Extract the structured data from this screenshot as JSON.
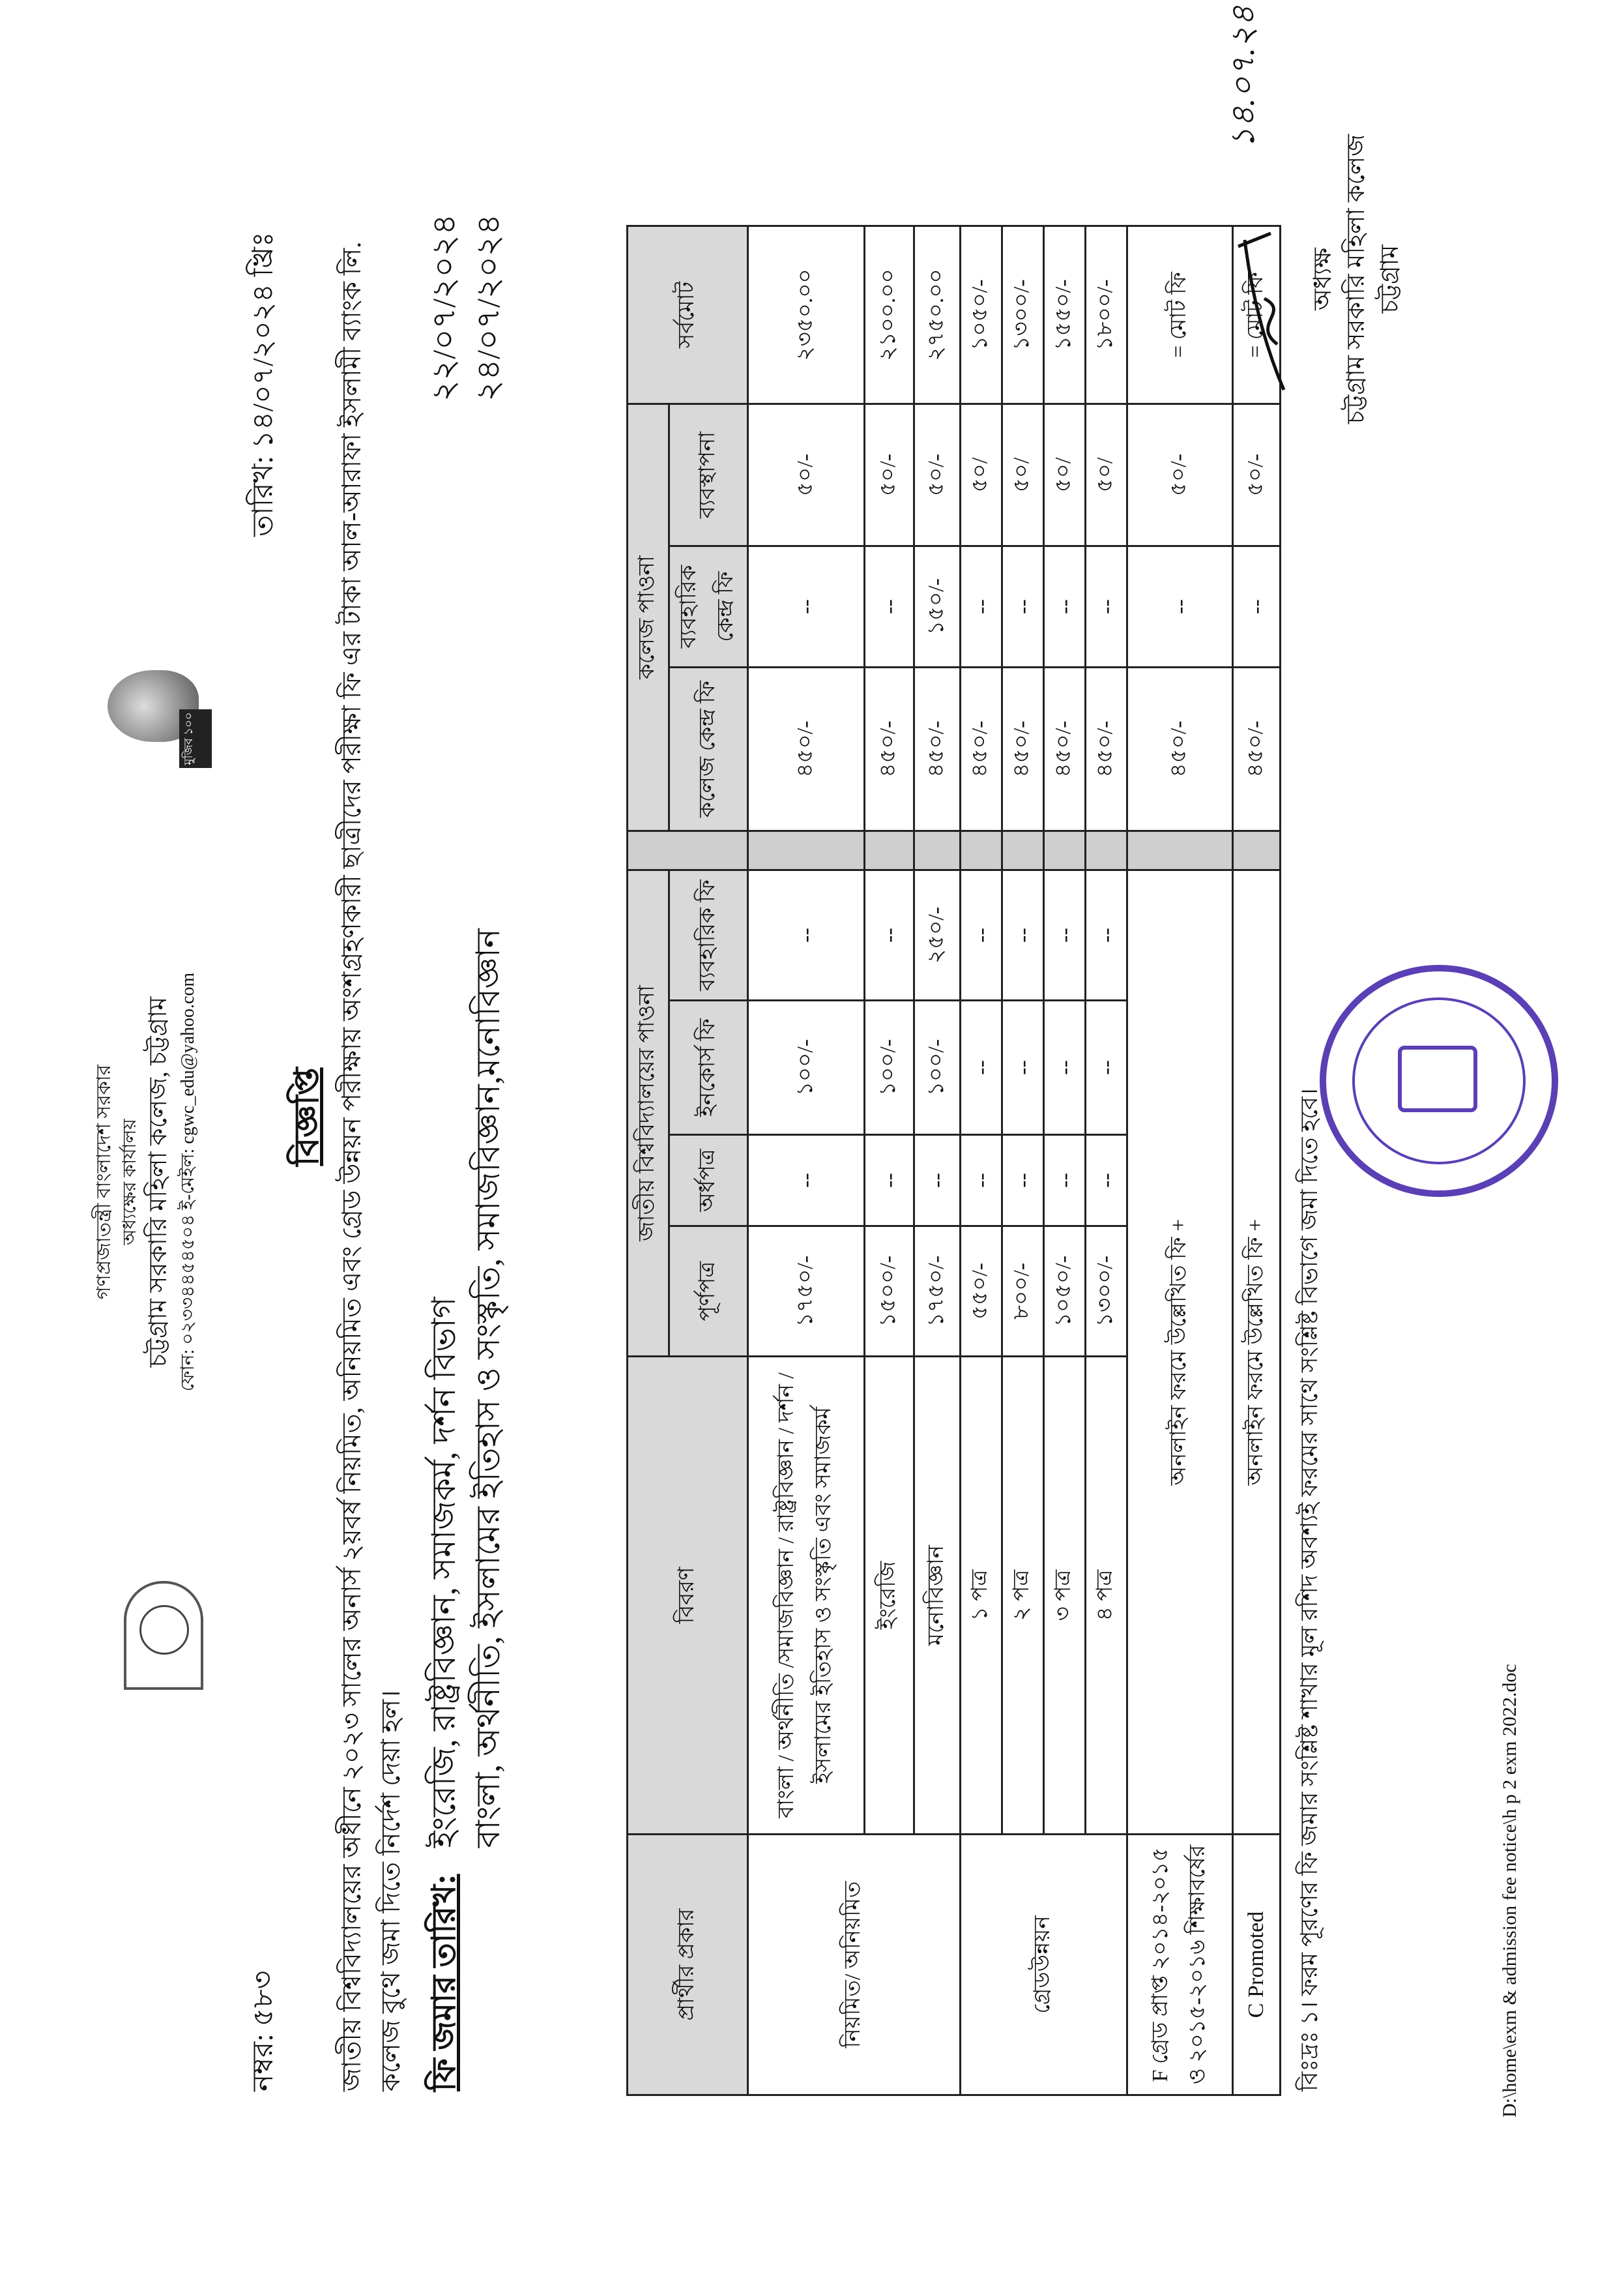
{
  "header": {
    "govt": "গণপ্রজাতন্ত্রী বাংলাদেশ সরকার",
    "office": "অধ্যক্ষের কার্যালয়",
    "college": "চট্টগ্রাম সরকারি মহিলা কলেজ, চট্টগ্রাম",
    "contact": "ফোন: ০২৩৩৪৪৫৪৫০৪ ই-মেইল: cgwc_edu@yahoo.com",
    "mujib_logo_text": "মুজিব ১০০"
  },
  "memo_no": "নম্বর: ৫৮৩",
  "date": "তারিখ: ১৪/০৭/২০২৪ খ্রিঃ",
  "title": "বিজ্ঞপ্তি",
  "paragraph": "জাতীয় বিশ্ববিদ্যালয়ের অধীনে ২০২৩ সালের অনার্স ২য়বর্ষ নিয়মিত, অনিয়মিত এবং গ্রেড উন্নয়ন পরীক্ষায় অংশগ্রহণকারী ছাত্রীদের পরীক্ষা ফি এর টাকা আল-আরাফা ইসলামী ব্যাংক লি. কলেজ বুথে জমা দিতে নির্দেশ দেয়া হল।",
  "fee_dates": {
    "label": "ফি জমার তারিখ:",
    "items": [
      {
        "depts": "ইংরেজি, রাষ্ট্রবিজ্ঞান, সমাজকর্ম, দর্শন বিভাগ",
        "date": "২২/০৭/২০২৪"
      },
      {
        "depts": "বাংলা, অর্থনীতি, ইসলামের ইতিহাস ও সংস্কৃতি, সমাজবিজ্ঞান,মনোবিজ্ঞান",
        "date": "২৪/০৭/২০২৪"
      }
    ]
  },
  "table": {
    "h_type": "প্রার্থীর প্রকার",
    "h_desc": "বিবরণ",
    "h_nu": "জাতীয় বিশ্ববিদ্যালয়ের পাওনা",
    "h_college": "কলেজ পাওনা",
    "h_total": "সর্বমোট",
    "sub": [
      "পূর্ণপত্র",
      "অর্ধপত্র",
      "ইনকোর্স ফি",
      "ব্যবহারিক ফি",
      "কলেজ কেন্দ্র ফি",
      "ব্যবহারিক কেন্দ্র ফি",
      "ব্যবস্থাপনা"
    ],
    "type_regular": "নিয়মিত/ অনিয়মিত",
    "type_grade": "গ্রেডউন্নয়ন",
    "type_f": "F গ্রেড প্রাপ্ত ২০১৪-২০১৫ ও ২০১৫-২০১৬ শিক্ষাবর্ষের",
    "type_c": "C Promoted",
    "rows": [
      [
        "বাংলা / অর্থনীতি /সমাজবিজ্ঞান / রাষ্ট্রবিজ্ঞান / দর্শন / ইসলামের ইতিহাস ও সংস্কৃতি এবং সমাজকর্ম",
        "১৭৫০/-",
        "--",
        "১০০/-",
        "--",
        "৪৫০/-",
        "--",
        "৫০/-",
        "২৩৫০.০০"
      ],
      [
        "ইংরেজি",
        "১৫০০/-",
        "--",
        "১০০/-",
        "--",
        "৪৫০/-",
        "--",
        "৫০/-",
        "২১০০.০০"
      ],
      [
        "মনোবিজ্ঞান",
        "১৭৫০/-",
        "--",
        "১০০/-",
        "২৫০/-",
        "৪৫০/-",
        "১৫০/-",
        "৫০/-",
        "২৭৫০.০০"
      ],
      [
        "১ পত্র",
        "৫৫০/-",
        "--",
        "--",
        "--",
        "৪৫০/-",
        "--",
        "৫০/",
        "১০৫০/-"
      ],
      [
        "২ পত্র",
        "৮০০/-",
        "--",
        "--",
        "--",
        "৪৫০/-",
        "--",
        "৫০/",
        "১৩০০/-"
      ],
      [
        "৩ পত্র",
        "১০৫০/-",
        "--",
        "--",
        "--",
        "৪৫০/-",
        "--",
        "৫০/",
        "১৫৫০/-"
      ],
      [
        "৪ পত্র",
        "১৩০০/-",
        "--",
        "--",
        "--",
        "৪৫০/-",
        "--",
        "৫০/",
        "১৮০০/-"
      ]
    ],
    "f_row": [
      "অনলাইন ফরমে উল্লেখিত ফি +",
      "৪৫০/-",
      "--",
      "৫০/-",
      "= মোট ফি"
    ],
    "c_row": [
      "অনলাইন ফরমে উল্লেখিত ফি +",
      "৪৫০/-",
      "--",
      "৫০/-",
      "= মোট ফি"
    ]
  },
  "footnote": "বিঃদ্রঃ ১। ফরম পূরণের ফি জমার সংশ্লিষ্ট শাখার মূল রশিদ অবশ্যই ফরমের সাথে সংশ্লিষ্ট বিভাগে জমা দিতে হবে।",
  "signature": {
    "handwritten_date": "১৪.০৭.২৪",
    "designation": "অধ্যক্ষ",
    "college": "চট্টগ্রাম সরকারি মহিলা কলেজ",
    "city": "চট্টগ্রাম"
  },
  "stamp_text": "চট্টগ্রাম সরকারি মহিলা কলেজ",
  "file_path": "D:\\home\\exm & admission fee notice\\h p 2 exm 2022.doc",
  "colors": {
    "stamp": "#5b3fb5",
    "header_fill": "#d9d9d9"
  }
}
